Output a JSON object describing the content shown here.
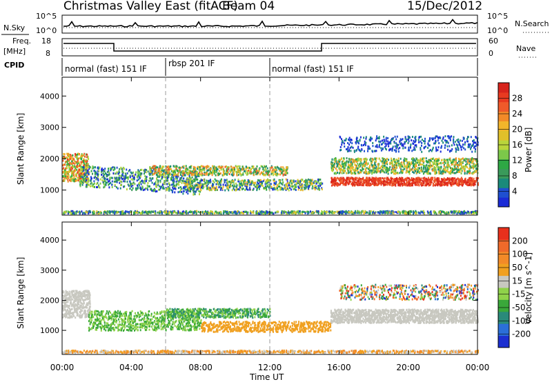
{
  "header": {
    "title": "Christmas Valley East (fitACF)",
    "beam": "Beam 04",
    "date": "15/Dec/2012"
  },
  "noise_panel": {
    "left_label": "N.Sky",
    "right_label": "N.Search",
    "ticks_left": [
      "10^5",
      "10^0"
    ],
    "ticks_right": [
      "10^5",
      "10^0"
    ]
  },
  "freq_panel": {
    "left_label_1": "Freq.",
    "left_label_2": "[MHz]",
    "right_label": "Nave",
    "ticks_left": [
      "18",
      "8"
    ],
    "ticks_right": [
      "60",
      "0"
    ]
  },
  "cpid": {
    "label": "CPID",
    "segments": [
      {
        "text": "normal (fast) 151 IF",
        "start_h": 0,
        "end_h": 6
      },
      {
        "text": "rbsp 201 IF",
        "start_h": 6,
        "end_h": 12
      },
      {
        "text": "normal (fast) 151 IF",
        "start_h": 12,
        "end_h": 24
      }
    ]
  },
  "chart_data": [
    {
      "type": "heatmap",
      "quantity": "Power",
      "ylabel": "Slant Range [km]",
      "xlabel": "Time UT",
      "xlim": [
        0,
        24
      ],
      "ylim": [
        200,
        4600
      ],
      "x_ticks": [
        "00:00",
        "04:00",
        "08:00",
        "12:00",
        "16:00",
        "20:00",
        "00:00"
      ],
      "y_ticks": [
        1000,
        2000,
        3000,
        4000
      ],
      "colorbar": {
        "label": "Power [dB]",
        "ticks": [
          "4",
          "8",
          "12",
          "16",
          "20",
          "24",
          "28"
        ],
        "colors": [
          "#1b2bd6",
          "#1f4fd0",
          "#1a8a7a",
          "#3a9a5a",
          "#2ea844",
          "#7cc84a",
          "#b9d53b",
          "#e0c02a",
          "#f2b52b",
          "#f28a28",
          "#ef5a2a",
          "#e83a20",
          "#d8241c"
        ]
      }
    },
    {
      "type": "heatmap",
      "quantity": "Velocity",
      "ylabel": "Slant Range [km]",
      "xlabel": "Time UT",
      "xlim": [
        0,
        24
      ],
      "ylim": [
        200,
        4600
      ],
      "x_ticks": [
        "00:00",
        "04:00",
        "08:00",
        "12:00",
        "16:00",
        "20:00",
        "00:00"
      ],
      "y_ticks": [
        1000,
        2000,
        3000,
        4000
      ],
      "colorbar": {
        "label": "Velocity [m s^-1]",
        "ticks": [
          "200",
          "100",
          "50",
          "15",
          "-15",
          "-50",
          "-100",
          "-200"
        ],
        "colors": [
          "#1c2fd0",
          "#2b6fd8",
          "#2a8a7a",
          "#3aa83a",
          "#8fd24a",
          "#c8c8c0",
          "#f0a020",
          "#f28a28",
          "#ef6a2a",
          "#e8301c"
        ]
      }
    }
  ]
}
